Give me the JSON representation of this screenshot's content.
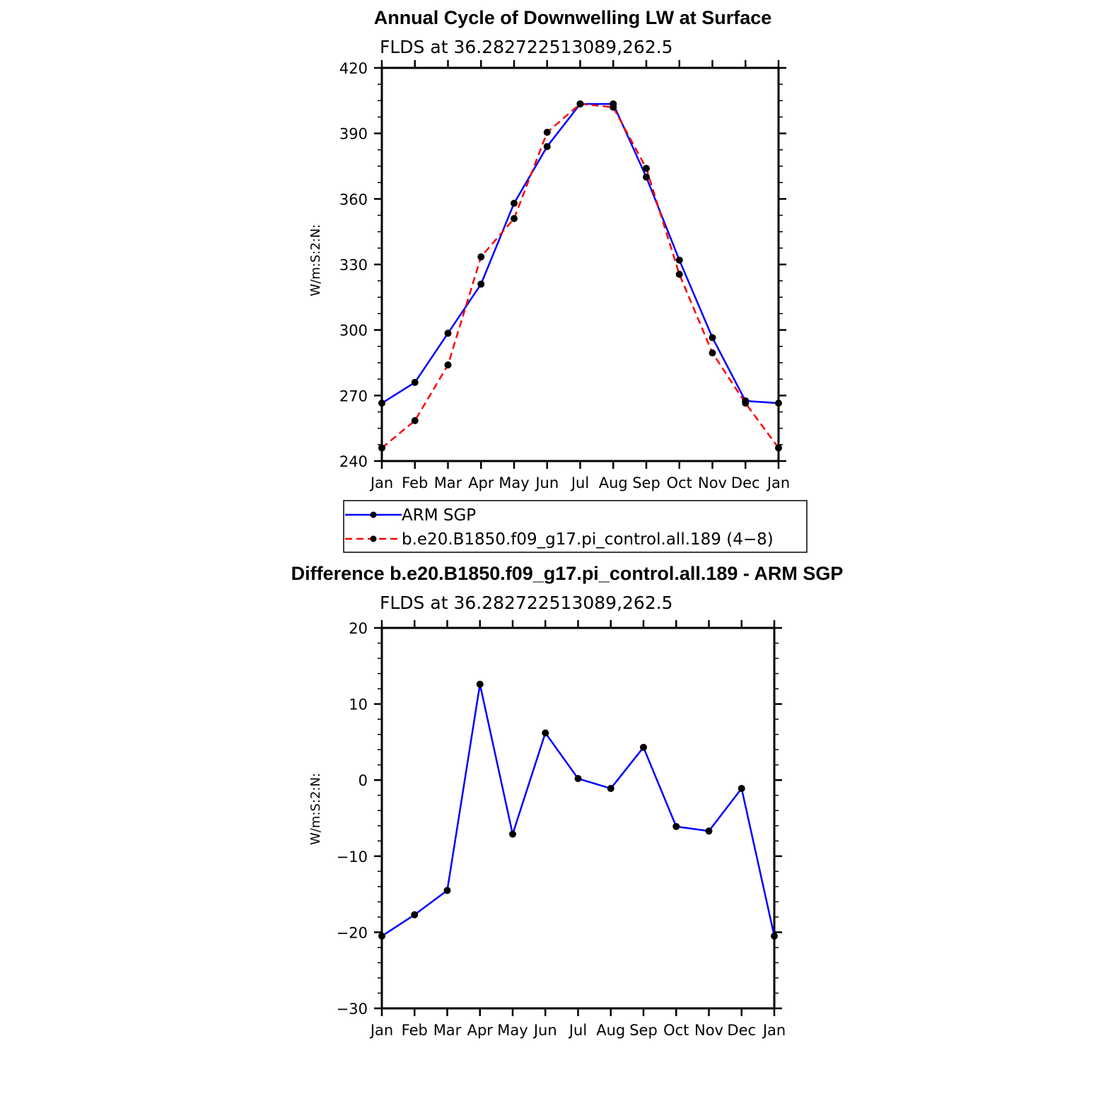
{
  "chart_data": [
    {
      "type": "line",
      "title": "Annual Cycle of Downwelling LW at Surface",
      "subtitle": "FLDS at 36.282722513089,262.5",
      "ylabel": "W/m:S:2:N:",
      "ylim": [
        240,
        420
      ],
      "yticks": [
        240,
        270,
        300,
        330,
        360,
        390,
        420
      ],
      "x": [
        "Jan",
        "Feb",
        "Mar",
        "Apr",
        "May",
        "Jun",
        "Jul",
        "Aug",
        "Sep",
        "Oct",
        "Nov",
        "Dec",
        "Jan"
      ],
      "series": [
        {
          "name": "ARM SGP",
          "color": "#0000ff",
          "dash": "solid",
          "values": [
            266.5,
            276,
            298.5,
            321,
            358,
            384,
            403.5,
            403.5,
            370,
            332,
            296.5,
            267.5,
            266.5
          ]
        },
        {
          "name": "b.e20.B1850.f09_g17.pi_control.all.189 (4−8)",
          "color": "#ff0000",
          "dash": "dashed",
          "values": [
            246,
            258.5,
            284,
            333.5,
            351,
            390.5,
            403.5,
            402,
            374,
            325.5,
            289.5,
            266.5,
            246
          ]
        }
      ],
      "legend_position": "below"
    },
    {
      "type": "line",
      "title": "Difference b.e20.B1850.f09_g17.pi_control.all.189 - ARM SGP",
      "subtitle": "FLDS at 36.282722513089,262.5",
      "ylabel": "W/m:S:2:N:",
      "ylim": [
        -30,
        20
      ],
      "yticks": [
        -30,
        -20,
        -10,
        0,
        10,
        20
      ],
      "ytick_labels": [
        "−30",
        "−20",
        "−10",
        "0",
        "10",
        "20"
      ],
      "x": [
        "Jan",
        "Feb",
        "Mar",
        "Apr",
        "May",
        "Jun",
        "Jul",
        "Aug",
        "Sep",
        "Oct",
        "Nov",
        "Dec",
        "Jan"
      ],
      "series": [
        {
          "color": "#0000ff",
          "dash": "solid",
          "values": [
            -20.5,
            -17.7,
            -14.5,
            12.6,
            -7.1,
            6.2,
            0.2,
            -1.1,
            4.3,
            -6.1,
            -6.7,
            -1.1,
            -20.5
          ]
        }
      ]
    }
  ]
}
